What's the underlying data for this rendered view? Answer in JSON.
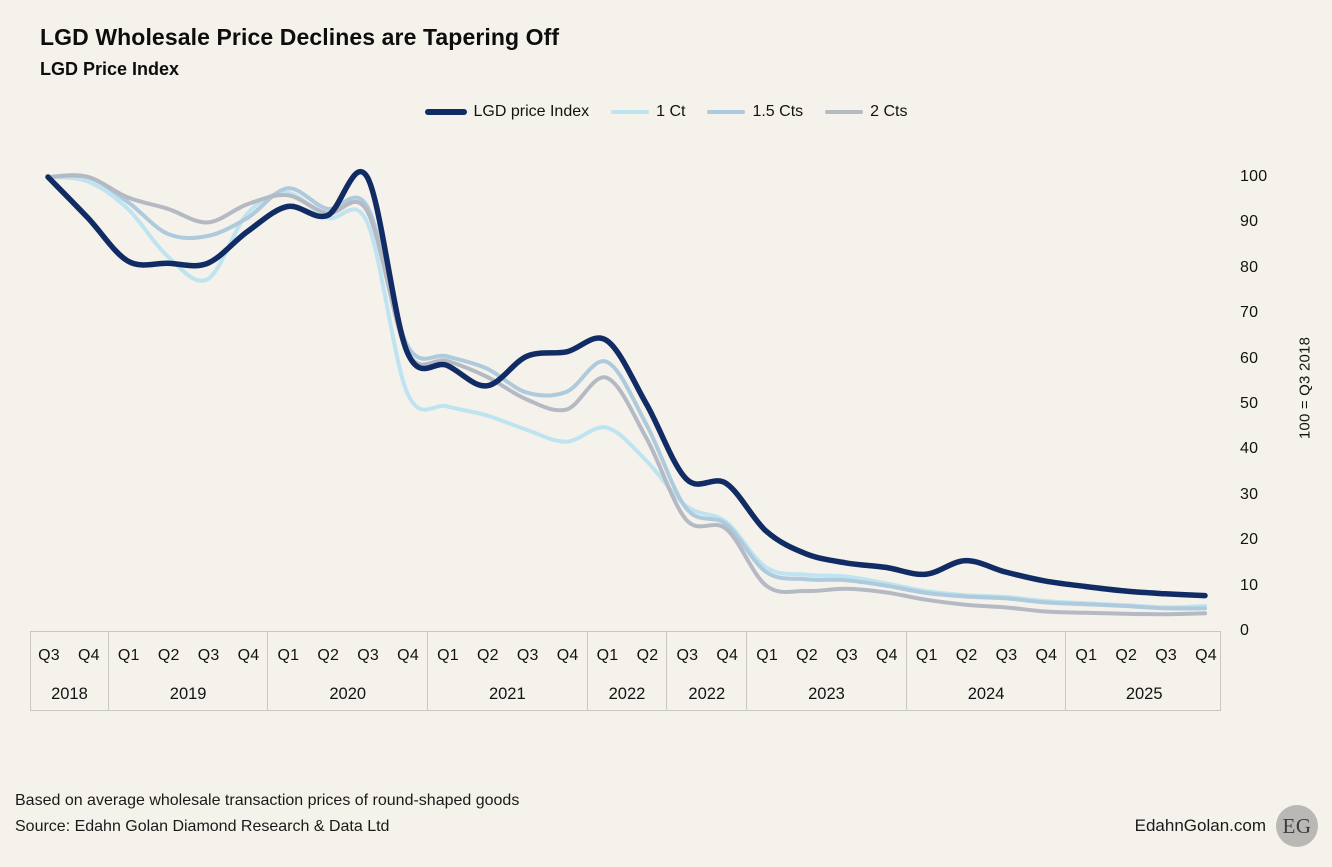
{
  "page": {
    "background": "#f4f2ea"
  },
  "header": {
    "title": "LGD Wholesale Price Declines are Tapering Off",
    "subtitle": "LGD Price Index"
  },
  "legend": {
    "items": [
      {
        "label": "LGD price Index",
        "color": "#112b64"
      },
      {
        "label": "1 Ct",
        "color": "#bfe3f0"
      },
      {
        "label": "1.5 Cts",
        "color": "#aecadd"
      },
      {
        "label": "2 Cts",
        "color": "#b5b9c3"
      }
    ]
  },
  "chart_data": {
    "type": "line",
    "title": "LGD Wholesale Price Declines are Tapering Off",
    "subtitle": "LGD Price Index",
    "grid": "off",
    "legend_position": "top",
    "ylim": [
      0,
      100
    ],
    "y_ticks": [
      0,
      10,
      20,
      30,
      40,
      50,
      60,
      70,
      80,
      90,
      100
    ],
    "y_axis_label": "100 = Q3 2018",
    "categories": [
      "Q3 2018",
      "Q4 2018",
      "Q1 2019",
      "Q2 2019",
      "Q3 2019",
      "Q4 2019",
      "Q1 2020",
      "Q2 2020",
      "Q3 2020",
      "Q4 2020",
      "Q1 2021",
      "Q2 2021",
      "Q3 2021",
      "Q4 2021",
      "Q1 2022",
      "Q2 2022",
      "Q3 2022",
      "Q4 2022",
      "Q1 2023",
      "Q2 2023",
      "Q3 2023",
      "Q4 2023",
      "Q1 2024",
      "Q2 2024",
      "Q3 2024",
      "Q4 2024",
      "Q1 2025",
      "Q2 2025",
      "Q3 2025",
      "Q4 2025"
    ],
    "x_axis_groups": [
      {
        "year": "2018",
        "quarters": [
          "Q3",
          "Q4"
        ]
      },
      {
        "year": "2019",
        "quarters": [
          "Q1",
          "Q2",
          "Q3",
          "Q4"
        ]
      },
      {
        "year": "2020",
        "quarters": [
          "Q1",
          "Q2",
          "Q3",
          "Q4"
        ]
      },
      {
        "year": "2021",
        "quarters": [
          "Q1",
          "Q2",
          "Q3",
          "Q4"
        ]
      },
      {
        "year": "2022",
        "quarters": [
          "Q1",
          "Q2"
        ]
      },
      {
        "year": "2022",
        "quarters": [
          "Q3",
          "Q4"
        ]
      },
      {
        "year": "2023",
        "quarters": [
          "Q1",
          "Q2",
          "Q3",
          "Q4"
        ]
      },
      {
        "year": "2024",
        "quarters": [
          "Q1",
          "Q2",
          "Q3",
          "Q4"
        ]
      },
      {
        "year": "2025",
        "quarters": [
          "Q1",
          "Q2",
          "Q3",
          "Q4"
        ]
      }
    ],
    "series": [
      {
        "name": "LGD price Index",
        "color": "#112b64",
        "values": [
          100,
          91,
          81.5,
          81,
          81,
          88,
          93.5,
          91.5,
          100,
          61.5,
          58.5,
          54,
          60.5,
          61.5,
          64,
          50,
          33.5,
          32.5,
          22,
          17,
          15,
          14,
          12.5,
          15.5,
          13,
          11,
          9.8,
          8.8,
          8.2,
          7.8
        ]
      },
      {
        "name": "1 Ct",
        "color": "#bfe3f0",
        "values": [
          100,
          99,
          93,
          82.5,
          77.5,
          92,
          96.5,
          91,
          90,
          52.5,
          49.5,
          47.5,
          44.3,
          41.7,
          44.8,
          37.5,
          27.5,
          24,
          14,
          12.4,
          12,
          10.5,
          8.8,
          7.9,
          7.5,
          6.6,
          6.1,
          5.7,
          5.2,
          5.5
        ]
      },
      {
        "name": "1.5 Cts",
        "color": "#aecadd",
        "values": [
          100,
          100,
          94.5,
          87.5,
          87,
          91,
          97.5,
          93,
          93.5,
          63,
          60.5,
          57.8,
          52.5,
          52.7,
          59.3,
          45.5,
          27,
          23.5,
          13,
          11.4,
          11.2,
          10,
          8.4,
          7.6,
          7.2,
          6.3,
          5.9,
          5.5,
          5,
          5
        ]
      },
      {
        "name": "2 Cts",
        "color": "#b5b9c3",
        "values": [
          100,
          100,
          95.5,
          93,
          90,
          94,
          96,
          92,
          92.5,
          61.5,
          59.5,
          56,
          51,
          48.8,
          55.8,
          42.5,
          24.5,
          22.5,
          10,
          8.8,
          9.3,
          8.5,
          6.9,
          5.8,
          5.2,
          4.3,
          4,
          3.8,
          3.7,
          3.9
        ]
      }
    ]
  },
  "footer": {
    "note": "Based on average wholesale transaction prices of round-shaped goods",
    "source": "Source: Edahn Golan Diamond Research & Data Ltd",
    "brand": "EdahnGolan.com",
    "logo_text": "EG"
  }
}
